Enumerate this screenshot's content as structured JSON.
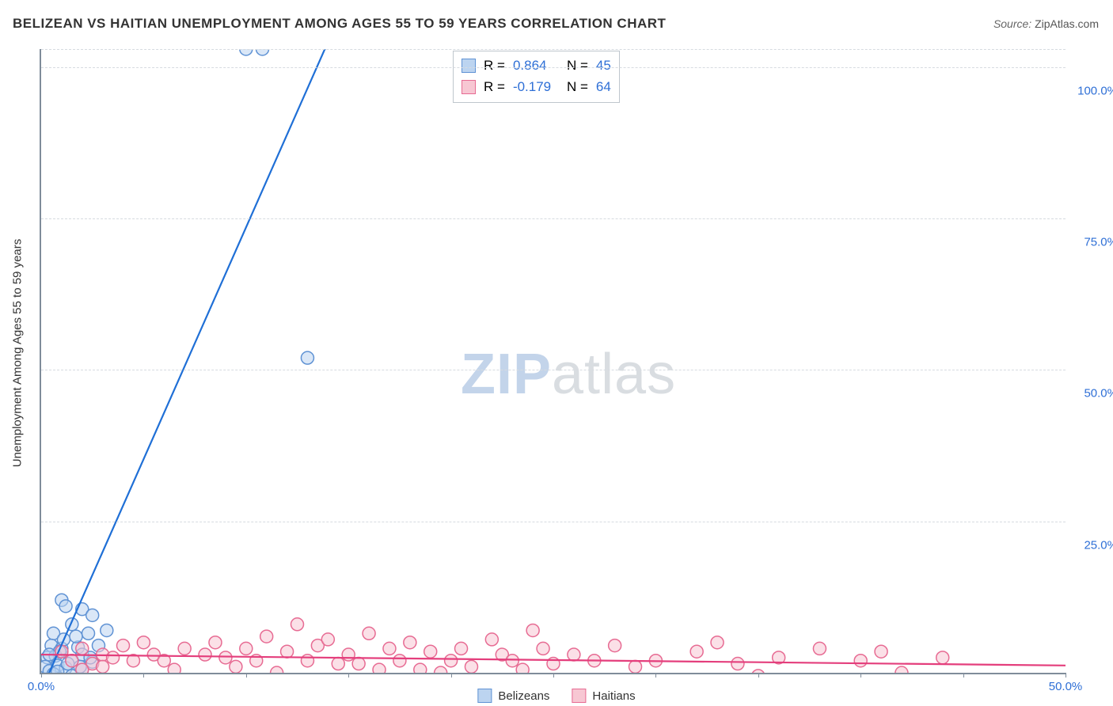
{
  "title": "BELIZEAN VS HAITIAN UNEMPLOYMENT AMONG AGES 55 TO 59 YEARS CORRELATION CHART",
  "source_label": "Source:",
  "source_value": "ZipAtlas.com",
  "y_axis_title": "Unemployment Among Ages 55 to 59 years",
  "watermark": {
    "zip": "ZIP",
    "rest": "atlas"
  },
  "chart": {
    "type": "scatter",
    "xlim": [
      0,
      50
    ],
    "ylim": [
      0,
      103
    ],
    "x_ticks": [
      0,
      5,
      10,
      15,
      20,
      25,
      30,
      35,
      40,
      45,
      50
    ],
    "x_tick_labels": {
      "0": "0.0%",
      "50": "50.0%"
    },
    "y_gridlines": [
      25,
      50,
      75,
      100,
      103
    ],
    "y_tick_labels": {
      "25": "25.0%",
      "50": "50.0%",
      "75": "75.0%",
      "100": "100.0%"
    },
    "x_label_color": "#2e6fd6",
    "y_label_color": "#2e6fd6",
    "grid_color": "#d6dbe0",
    "axis_color": "#7f8c9a",
    "background": "#ffffff",
    "marker_radius": 8,
    "marker_stroke_width": 1.5,
    "line_width": 2.2,
    "series": [
      {
        "name": "Belizeans",
        "fill": "#bcd4f0",
        "stroke": "#5f92d4",
        "line_color": "#1f6fd6",
        "R": "0.864",
        "N": "45",
        "trend": {
          "x1": 0,
          "y1": -3,
          "x2": 14.5,
          "y2": 108
        },
        "points": [
          [
            10.0,
            103.0
          ],
          [
            10.8,
            103.0
          ],
          [
            13.0,
            52.0
          ],
          [
            1.0,
            12.0
          ],
          [
            2.0,
            10.5
          ],
          [
            1.2,
            11.0
          ],
          [
            2.5,
            9.5
          ],
          [
            1.5,
            8.0
          ],
          [
            0.6,
            6.5
          ],
          [
            2.3,
            6.5
          ],
          [
            3.2,
            7.0
          ],
          [
            0.5,
            4.5
          ],
          [
            1.0,
            4.0
          ],
          [
            1.8,
            4.2
          ],
          [
            2.0,
            3.0
          ],
          [
            0.3,
            2.5
          ],
          [
            0.7,
            2.8
          ],
          [
            1.5,
            2.0
          ],
          [
            2.5,
            1.8
          ],
          [
            0.2,
            1.0
          ],
          [
            0.8,
            1.2
          ],
          [
            1.2,
            0.8
          ],
          [
            2.0,
            0.5
          ],
          [
            0.4,
            0.3
          ],
          [
            0.6,
            -0.2
          ],
          [
            1.5,
            -0.5
          ],
          [
            0.9,
            -1.0
          ],
          [
            1.8,
            -1.3
          ],
          [
            2.2,
            -1.5
          ],
          [
            0.3,
            -1.8
          ],
          [
            1.0,
            -2.0
          ],
          [
            1.4,
            -2.3
          ],
          [
            0.5,
            -2.7
          ],
          [
            2.0,
            -2.5
          ],
          [
            0.7,
            -3.0
          ],
          [
            1.6,
            -3.2
          ],
          [
            1.1,
            5.5
          ],
          [
            0.9,
            3.5
          ],
          [
            1.7,
            6.0
          ],
          [
            2.8,
            4.5
          ],
          [
            0.4,
            3.0
          ],
          [
            1.3,
            1.5
          ],
          [
            2.4,
            2.5
          ],
          [
            0.8,
            0.2
          ],
          [
            1.9,
            1.0
          ]
        ]
      },
      {
        "name": "Haitians",
        "fill": "#f7c7d3",
        "stroke": "#e76b93",
        "line_color": "#e43e7c",
        "R": "-0.179",
        "N": "64",
        "trend": {
          "x1": 0,
          "y1": 3.0,
          "x2": 50,
          "y2": 1.2
        },
        "points": [
          [
            1.0,
            3.5
          ],
          [
            1.5,
            2.0
          ],
          [
            2.0,
            4.0
          ],
          [
            2.5,
            1.5
          ],
          [
            3.0,
            3.0
          ],
          [
            3.5,
            2.5
          ],
          [
            4.0,
            4.5
          ],
          [
            4.5,
            2.0
          ],
          [
            5.0,
            5.0
          ],
          [
            5.5,
            3.0
          ],
          [
            6.0,
            2.0
          ],
          [
            7.0,
            4.0
          ],
          [
            8.0,
            3.0
          ],
          [
            8.5,
            5.0
          ],
          [
            9.0,
            2.5
          ],
          [
            10.0,
            4.0
          ],
          [
            10.5,
            2.0
          ],
          [
            11.0,
            6.0
          ],
          [
            12.0,
            3.5
          ],
          [
            12.5,
            8.0
          ],
          [
            13.0,
            2.0
          ],
          [
            13.5,
            4.5
          ],
          [
            14.0,
            5.5
          ],
          [
            15.0,
            3.0
          ],
          [
            15.5,
            1.5
          ],
          [
            16.0,
            6.5
          ],
          [
            17.0,
            4.0
          ],
          [
            17.5,
            2.0
          ],
          [
            18.0,
            5.0
          ],
          [
            18.5,
            0.5
          ],
          [
            19.0,
            3.5
          ],
          [
            20.0,
            2.0
          ],
          [
            20.5,
            4.0
          ],
          [
            21.0,
            1.0
          ],
          [
            22.0,
            5.5
          ],
          [
            22.5,
            3.0
          ],
          [
            23.0,
            2.0
          ],
          [
            24.0,
            7.0
          ],
          [
            24.5,
            4.0
          ],
          [
            25.0,
            1.5
          ],
          [
            26.0,
            3.0
          ],
          [
            27.0,
            2.0
          ],
          [
            28.0,
            4.5
          ],
          [
            29.0,
            1.0
          ],
          [
            32.0,
            3.5
          ],
          [
            33.0,
            5.0
          ],
          [
            34.0,
            1.5
          ],
          [
            35.0,
            -0.5
          ],
          [
            36.0,
            2.5
          ],
          [
            38.0,
            4.0
          ],
          [
            40.0,
            2.0
          ],
          [
            41.0,
            3.5
          ],
          [
            42.0,
            0.0
          ],
          [
            44.0,
            2.5
          ],
          [
            2.0,
            0.5
          ],
          [
            3.0,
            1.0
          ],
          [
            6.5,
            0.5
          ],
          [
            9.5,
            1.0
          ],
          [
            11.5,
            0.0
          ],
          [
            14.5,
            1.5
          ],
          [
            16.5,
            0.5
          ],
          [
            19.5,
            0.0
          ],
          [
            23.5,
            0.5
          ],
          [
            30.0,
            2.0
          ]
        ]
      }
    ]
  },
  "legend_corr": {
    "r_label": "R =",
    "n_label": "N ="
  },
  "legend_bottom": {
    "s1": "Belizeans",
    "s2": "Haitians"
  }
}
